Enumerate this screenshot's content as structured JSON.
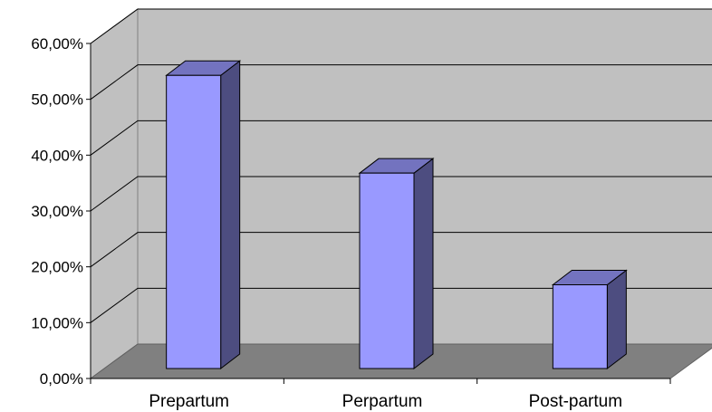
{
  "chart_data": {
    "type": "bar",
    "style": "3d-column",
    "categories": [
      "Prepartum",
      "Perpartum",
      "Post-partum"
    ],
    "values": [
      52.5,
      35.0,
      15.0
    ],
    "value_unit": "%",
    "ylim": [
      0,
      60
    ],
    "yticks": [
      0,
      10,
      20,
      30,
      40,
      50,
      60
    ],
    "ytick_labels": [
      "0,00%",
      "10,00%",
      "20,00%",
      "30,00%",
      "40,00%",
      "50,00%",
      "60,00%"
    ],
    "title": "",
    "xlabel": "",
    "ylabel": "",
    "grid": true,
    "legend": "none",
    "colors": {
      "bar_front": "#9999ff",
      "bar_side": "#4d4d80",
      "bar_top": "#7373bf",
      "back_wall": "#c0c0c0",
      "floor": "#808080",
      "gridline": "#000000",
      "background": "#ffffff"
    }
  }
}
